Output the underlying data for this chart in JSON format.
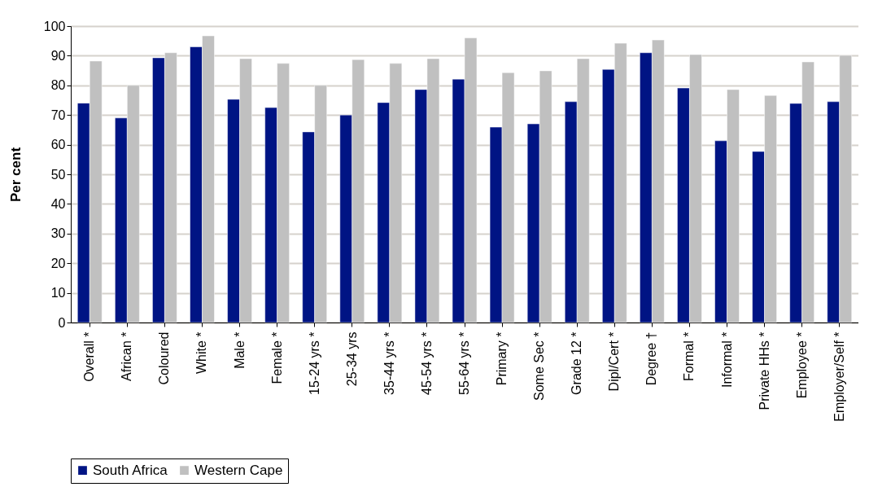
{
  "chart_data": {
    "type": "bar",
    "ylabel": "Per cent",
    "categories": [
      "Overall *",
      "African *",
      "Coloured",
      "White *",
      "Male *",
      "Female *",
      "15-24 yrs *",
      "25-34 yrs",
      "35-44 yrs *",
      "45-54 yrs *",
      "55-64 yrs *",
      "Primary *",
      "Some Sec *",
      "Grade 12 *",
      "Dipl/Cert *",
      "Degree †",
      "Formal *",
      "Informal *",
      "Private HHs *",
      "Employee *",
      "Employer/Self *"
    ],
    "series": [
      {
        "name": "South Africa",
        "color": "#001484",
        "values": [
          74,
          69,
          89.3,
          93,
          75.3,
          72.5,
          64.3,
          70,
          74.2,
          78.6,
          82.1,
          65.9,
          67,
          74.5,
          85.4,
          91,
          79.1,
          61.3,
          57.7,
          73.9,
          74.5
        ]
      },
      {
        "name": "Western Cape",
        "color": "#c0c0c0",
        "values": [
          88.2,
          80,
          91,
          96.7,
          89,
          87.4,
          80,
          88.7,
          87.4,
          89,
          96,
          84.3,
          84.9,
          89,
          94.2,
          95.3,
          90.4,
          78.6,
          76.6,
          87.9,
          90.1
        ]
      }
    ],
    "ylim": [
      0,
      100
    ],
    "yticks": [
      0,
      10,
      20,
      30,
      40,
      50,
      60,
      70,
      80,
      90,
      100
    ],
    "grid": "y",
    "legend": "bottom"
  }
}
